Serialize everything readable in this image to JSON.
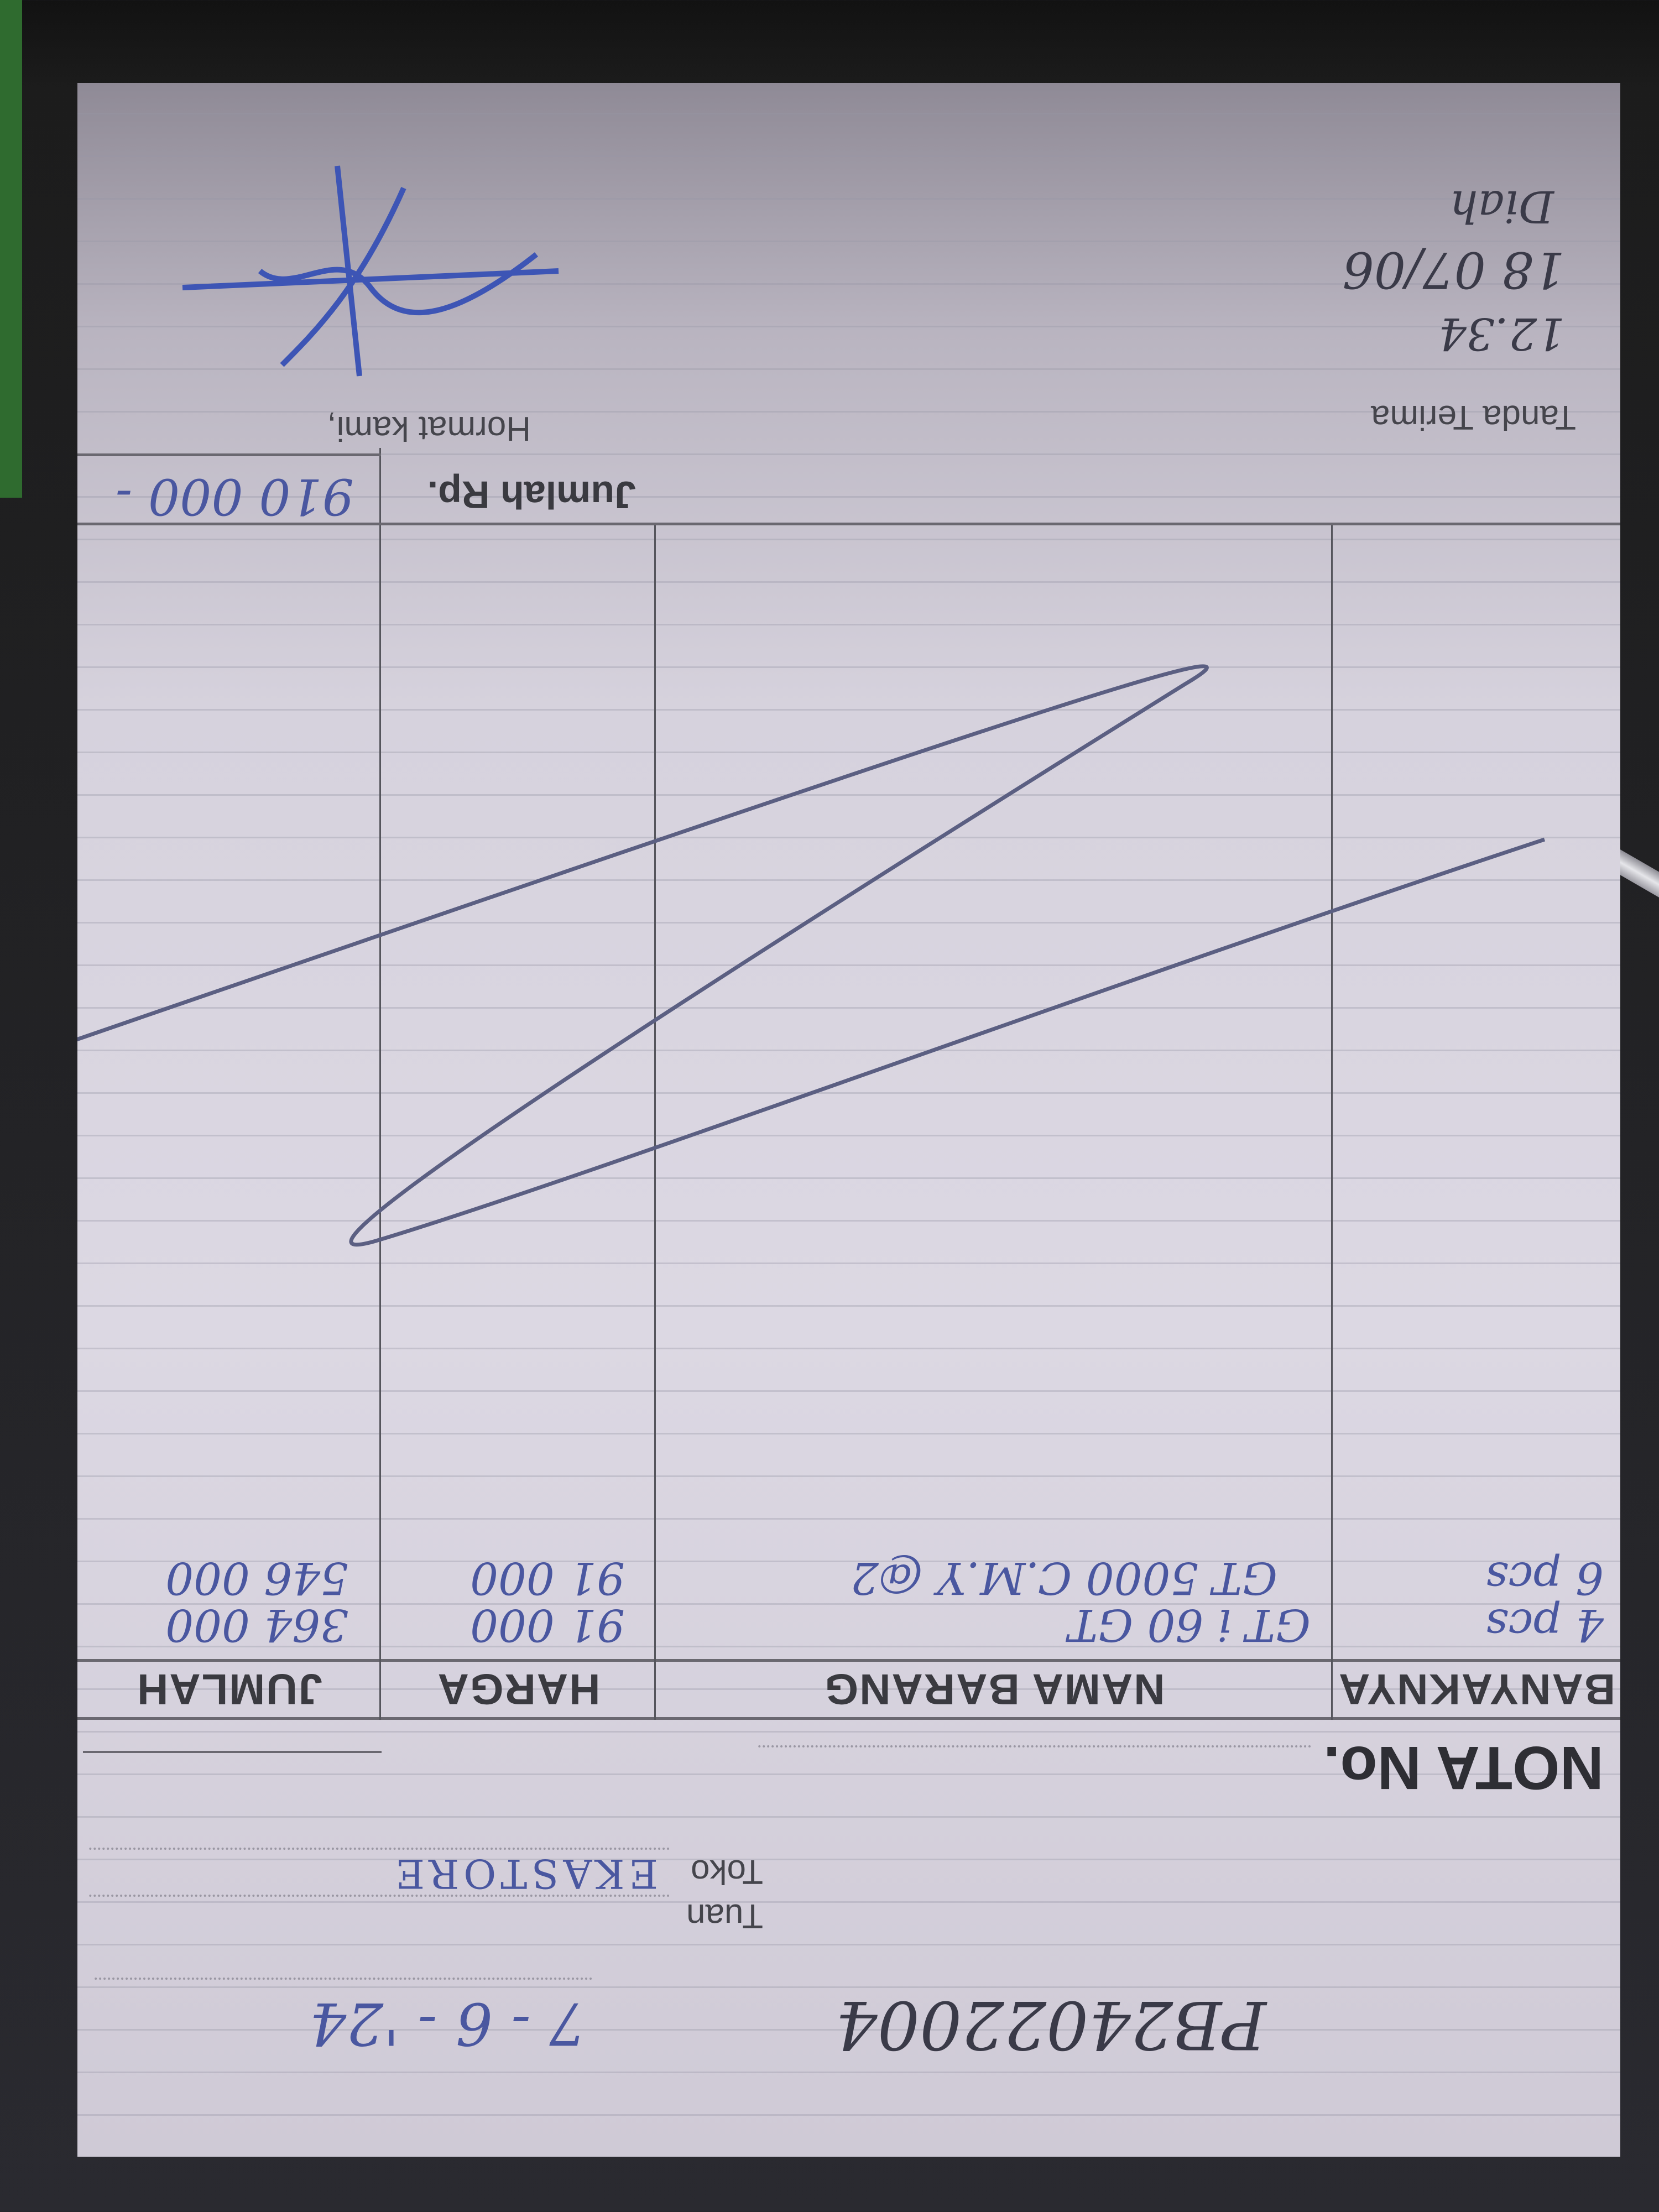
{
  "header": {
    "number_handwritten": "PB24022004",
    "date": "7 - 6 - '24",
    "tuan_label": "Tuan",
    "toko_label": "Toko",
    "toko_value": "EKASTORE",
    "nota_label": "NOTA No."
  },
  "table": {
    "columns": [
      "BANYAKNYA",
      "NAMA BARANG",
      "HARGA",
      "JUMLAH"
    ],
    "rows": [
      {
        "qty": "4 pcs",
        "item": "GT i 60 GT",
        "price": "91 000",
        "total": "364 000"
      },
      {
        "qty": "6 pcs",
        "item": "GT 5000 C.M.Y @2",
        "price": "91 000",
        "total": "546 000"
      }
    ],
    "total_label": "Jumlah Rp.",
    "total_value": "910 000 -"
  },
  "footer": {
    "received_label": "Tanda Terima",
    "regards_label": "Hormat kami,",
    "received_note_1": "12.34",
    "received_note_2": "18 07/06",
    "received_note_3": "Diah"
  },
  "colors": {
    "ink_blue": "#4a57a0",
    "paper": "#dcd8e3"
  }
}
